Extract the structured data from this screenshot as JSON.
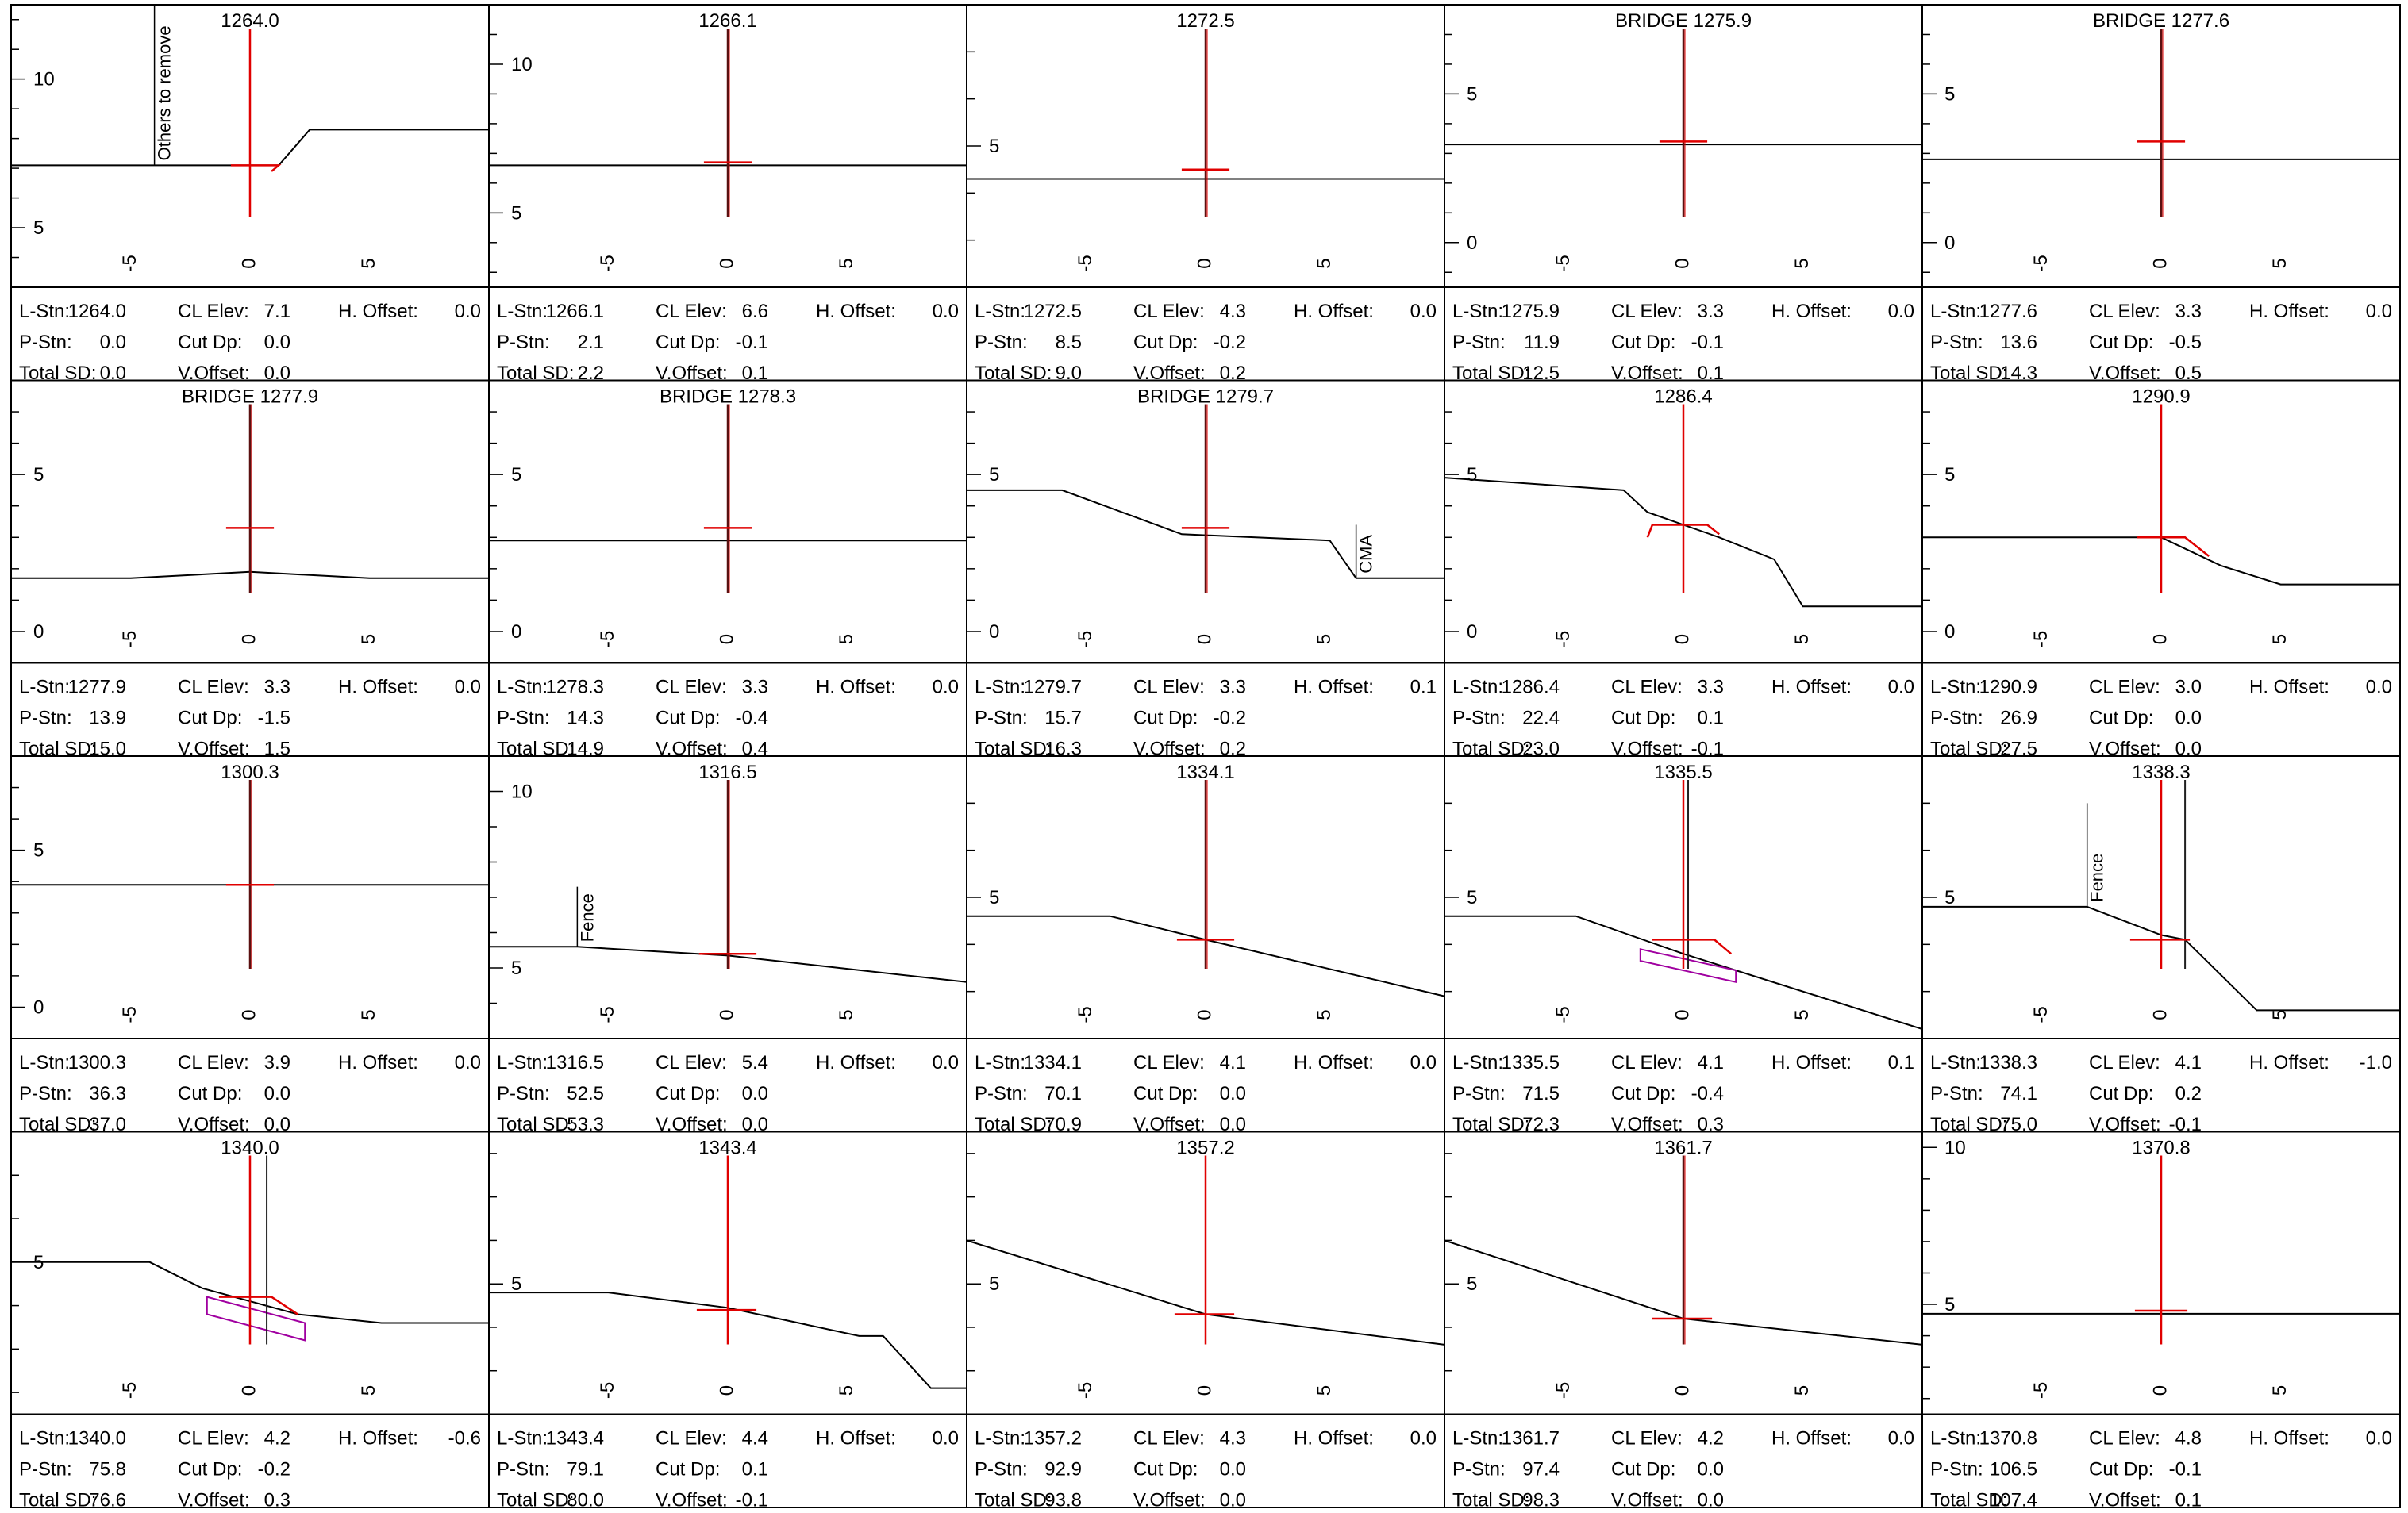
{
  "colors": {
    "grid": "#000000",
    "ground": "#000000",
    "design": "#e00000",
    "box": "#a000a0",
    "background": "#ffffff"
  },
  "labels": {
    "l_stn": "L-Stn:",
    "p_stn": "P-Stn:",
    "total_sd": "Total SD:",
    "cl_elev": "CL Elev:",
    "cut_dp": "Cut Dp:",
    "v_offset": "V.Offset:",
    "h_offset": "H. Offset:"
  },
  "sections": [
    {
      "title": "1264.0",
      "ytick_values": [
        5,
        10
      ],
      "ylim": [
        3,
        12.5
      ],
      "xticks": [
        -5,
        0,
        5
      ],
      "ground": [
        [
          -10,
          7.1
        ],
        [
          -8,
          7.1
        ],
        [
          -4,
          7.1
        ],
        [
          0,
          7.1
        ],
        [
          1.2,
          7.1
        ],
        [
          2.5,
          8.3
        ],
        [
          10,
          8.3
        ]
      ],
      "design": [
        [
          -0.8,
          7.1
        ],
        [
          1.2,
          7.1
        ],
        [
          0.9,
          6.9
        ]
      ],
      "center_color": "design",
      "extra_vline": null,
      "annotations": [
        {
          "text": "Others to remove",
          "x": -4,
          "y0": 7.1,
          "y1": 13
        }
      ],
      "l_stn": "1264.0",
      "p_stn": "0.0",
      "total_sd": "0.0",
      "cl_elev": "7.1",
      "cut_dp": "0.0",
      "v_offset": "0.0",
      "h_offset": "0.0"
    },
    {
      "title": "1266.1",
      "ytick_values": [
        5,
        10
      ],
      "ylim": [
        2.5,
        12
      ],
      "xticks": [
        -5,
        0,
        5
      ],
      "ground": [
        [
          -10,
          6.6
        ],
        [
          10,
          6.6
        ]
      ],
      "design": [
        [
          -1,
          6.7
        ],
        [
          1,
          6.7
        ]
      ],
      "center_color": "dark",
      "extra_vline": null,
      "annotations": [],
      "l_stn": "1266.1",
      "p_stn": "2.1",
      "total_sd": "2.2",
      "cl_elev": "6.6",
      "cut_dp": "-0.1",
      "v_offset": "0.1",
      "h_offset": "0.0"
    },
    {
      "title": "1272.5",
      "ytick_values": [
        5
      ],
      "ylim": [
        2,
        8
      ],
      "xticks": [
        -5,
        0,
        5
      ],
      "ground": [
        [
          -10,
          4.3
        ],
        [
          10,
          4.3
        ]
      ],
      "design": [
        [
          -1,
          4.5
        ],
        [
          1,
          4.5
        ]
      ],
      "center_color": "dark",
      "extra_vline": null,
      "annotations": [],
      "l_stn": "1272.5",
      "p_stn": "8.5",
      "total_sd": "9.0",
      "cl_elev": "4.3",
      "cut_dp": "-0.2",
      "v_offset": "0.2",
      "h_offset": "0.0"
    },
    {
      "title": "BRIDGE 1275.9",
      "ytick_values": [
        0,
        5
      ],
      "ylim": [
        -1.5,
        8
      ],
      "xticks": [
        -5,
        0,
        5
      ],
      "ground": [
        [
          -10,
          3.3
        ],
        [
          10,
          3.3
        ]
      ],
      "design": [
        [
          -1,
          3.4
        ],
        [
          1,
          3.4
        ]
      ],
      "center_color": "dark",
      "extra_vline": null,
      "annotations": [],
      "l_stn": "1275.9",
      "p_stn": "11.9",
      "total_sd": "12.5",
      "cl_elev": "3.3",
      "cut_dp": "-0.1",
      "v_offset": "0.1",
      "h_offset": "0.0"
    },
    {
      "title": "BRIDGE 1277.6",
      "ytick_values": [
        0,
        5
      ],
      "ylim": [
        -1.5,
        8
      ],
      "xticks": [
        -5,
        0,
        5
      ],
      "ground": [
        [
          -10,
          2.8
        ],
        [
          10,
          2.8
        ]
      ],
      "design": [
        [
          -1,
          3.4
        ],
        [
          1,
          3.4
        ]
      ],
      "center_color": "dark",
      "extra_vline": null,
      "annotations": [],
      "l_stn": "1277.6",
      "p_stn": "13.6",
      "total_sd": "14.3",
      "cl_elev": "3.3",
      "cut_dp": "-0.5",
      "v_offset": "0.5",
      "h_offset": "0.0"
    },
    {
      "title": "BRIDGE 1277.9",
      "ytick_values": [
        0,
        5
      ],
      "ylim": [
        -1,
        8
      ],
      "xticks": [
        -5,
        0,
        5
      ],
      "ground": [
        [
          -10,
          1.7
        ],
        [
          -5,
          1.7
        ],
        [
          0,
          1.9
        ],
        [
          5,
          1.7
        ],
        [
          10,
          1.7
        ]
      ],
      "design": [
        [
          -1,
          3.3
        ],
        [
          1,
          3.3
        ]
      ],
      "center_color": "dark",
      "extra_vline": null,
      "annotations": [],
      "l_stn": "1277.9",
      "p_stn": "13.9",
      "total_sd": "15.0",
      "cl_elev": "3.3",
      "cut_dp": "-1.5",
      "v_offset": "1.5",
      "h_offset": "0.0"
    },
    {
      "title": "BRIDGE 1278.3",
      "ytick_values": [
        0,
        5
      ],
      "ylim": [
        -1,
        8
      ],
      "xticks": [
        -5,
        0,
        5
      ],
      "ground": [
        [
          -10,
          2.9
        ],
        [
          10,
          2.9
        ]
      ],
      "design": [
        [
          -1,
          3.3
        ],
        [
          1,
          3.3
        ]
      ],
      "center_color": "dark",
      "extra_vline": null,
      "annotations": [],
      "l_stn": "1278.3",
      "p_stn": "14.3",
      "total_sd": "14.9",
      "cl_elev": "3.3",
      "cut_dp": "-0.4",
      "v_offset": "0.4",
      "h_offset": "0.0"
    },
    {
      "title": "BRIDGE 1279.7",
      "ytick_values": [
        0,
        5
      ],
      "ylim": [
        -1,
        8
      ],
      "xticks": [
        -5,
        0,
        5
      ],
      "ground": [
        [
          -10,
          4.5
        ],
        [
          -6,
          4.5
        ],
        [
          -1,
          3.1
        ],
        [
          5.2,
          2.9
        ],
        [
          6.3,
          1.7
        ],
        [
          10,
          1.7
        ]
      ],
      "design": [
        [
          -1,
          3.3
        ],
        [
          1,
          3.3
        ]
      ],
      "center_color": "dark",
      "extra_vline": null,
      "annotations": [
        {
          "text": "CMA",
          "x": 6.3,
          "y0": 1.7,
          "y1": 3.4
        }
      ],
      "l_stn": "1279.7",
      "p_stn": "15.7",
      "total_sd": "16.3",
      "cl_elev": "3.3",
      "cut_dp": "-0.2",
      "v_offset": "0.2",
      "h_offset": "0.1"
    },
    {
      "title": "1286.4",
      "ytick_values": [
        0,
        5
      ],
      "ylim": [
        -1,
        8
      ],
      "xticks": [
        -5,
        0,
        5
      ],
      "ground": [
        [
          -10,
          4.9
        ],
        [
          -2.5,
          4.5
        ],
        [
          -1.5,
          3.8
        ],
        [
          1.5,
          3.0
        ],
        [
          3.8,
          2.3
        ],
        [
          5,
          0.8
        ],
        [
          10,
          0.8
        ]
      ],
      "design": [
        [
          -1.5,
          3.0
        ],
        [
          -1.3,
          3.4
        ],
        [
          1.0,
          3.4
        ],
        [
          1.5,
          3.1
        ]
      ],
      "center_color": "design",
      "extra_vline": null,
      "annotations": [],
      "l_stn": "1286.4",
      "p_stn": "22.4",
      "total_sd": "23.0",
      "cl_elev": "3.3",
      "cut_dp": "0.1",
      "v_offset": "-0.1",
      "h_offset": "0.0"
    },
    {
      "title": "1290.9",
      "ytick_values": [
        0,
        5
      ],
      "ylim": [
        -1,
        8
      ],
      "xticks": [
        -5,
        0,
        5
      ],
      "ground": [
        [
          -10,
          3.0
        ],
        [
          0,
          3.0
        ],
        [
          2.5,
          2.1
        ],
        [
          5,
          1.5
        ],
        [
          10,
          1.5
        ]
      ],
      "design": [
        [
          -1,
          3.0
        ],
        [
          1,
          3.0
        ],
        [
          2.0,
          2.4
        ]
      ],
      "center_color": "design",
      "extra_vline": null,
      "annotations": [],
      "l_stn": "1290.9",
      "p_stn": "26.9",
      "total_sd": "27.5",
      "cl_elev": "3.0",
      "cut_dp": "0.0",
      "v_offset": "0.0",
      "h_offset": "0.0"
    },
    {
      "title": "1300.3",
      "ytick_values": [
        0,
        5
      ],
      "ylim": [
        -1,
        8
      ],
      "xticks": [
        -5,
        0,
        5
      ],
      "ground": [
        [
          -10,
          3.9
        ],
        [
          10,
          3.9
        ]
      ],
      "design": [
        [
          -1,
          3.9
        ],
        [
          1,
          3.9
        ]
      ],
      "center_color": "dark",
      "extra_vline": null,
      "annotations": [],
      "l_stn": "1300.3",
      "p_stn": "36.3",
      "total_sd": "37.0",
      "cl_elev": "3.9",
      "cut_dp": "0.0",
      "v_offset": "0.0",
      "h_offset": "0.0"
    },
    {
      "title": "1316.5",
      "ytick_values": [
        5,
        10
      ],
      "ylim": [
        3,
        11
      ],
      "xticks": [
        -5,
        0,
        5
      ],
      "ground": [
        [
          -10,
          5.6
        ],
        [
          -6.3,
          5.6
        ],
        [
          0,
          5.35
        ],
        [
          10,
          4.6
        ]
      ],
      "design": [
        [
          -1.2,
          5.4
        ],
        [
          1.2,
          5.4
        ]
      ],
      "center_color": "dark",
      "extra_vline": null,
      "annotations": [
        {
          "text": "Fence",
          "x": -6.3,
          "y0": 5.6,
          "y1": 7.3
        }
      ],
      "l_stn": "1316.5",
      "p_stn": "52.5",
      "total_sd": "53.3",
      "cl_elev": "5.4",
      "cut_dp": "0.0",
      "v_offset": "0.0",
      "h_offset": "0.0"
    },
    {
      "title": "1334.1",
      "ytick_values": [
        5
      ],
      "ylim": [
        2,
        8
      ],
      "xticks": [
        -5,
        0,
        5
      ],
      "ground": [
        [
          -10,
          4.6
        ],
        [
          -4,
          4.6
        ],
        [
          0,
          4.1
        ],
        [
          10,
          2.9
        ]
      ],
      "design": [
        [
          -1.2,
          4.1
        ],
        [
          1.2,
          4.1
        ]
      ],
      "center_color": "dark",
      "extra_vline": null,
      "annotations": [],
      "l_stn": "1334.1",
      "p_stn": "70.1",
      "total_sd": "70.9",
      "cl_elev": "4.1",
      "cut_dp": "0.0",
      "v_offset": "0.0",
      "h_offset": "0.0"
    },
    {
      "title": "1335.5",
      "ytick_values": [
        5
      ],
      "ylim": [
        2,
        8
      ],
      "xticks": [
        -5,
        0,
        5
      ],
      "ground": [
        [
          -10,
          4.6
        ],
        [
          -4.5,
          4.6
        ],
        [
          0,
          3.8
        ],
        [
          10,
          2.2
        ]
      ],
      "design": [
        [
          -1.3,
          4.1
        ],
        [
          1.3,
          4.1
        ],
        [
          2.0,
          3.8
        ]
      ],
      "center_color": "design",
      "extra_vline": 0.2,
      "box": [
        [
          -1.8,
          3.9
        ],
        [
          2.2,
          3.45
        ],
        [
          2.2,
          3.2
        ],
        [
          -1.8,
          3.65
        ]
      ],
      "annotations": [],
      "l_stn": "1335.5",
      "p_stn": "71.5",
      "total_sd": "72.3",
      "cl_elev": "4.1",
      "cut_dp": "-0.4",
      "v_offset": "0.3",
      "h_offset": "0.1"
    },
    {
      "title": "1338.3",
      "ytick_values": [
        5
      ],
      "ylim": [
        2,
        8
      ],
      "xticks": [
        -5,
        0,
        5
      ],
      "ground": [
        [
          -10,
          4.8
        ],
        [
          -3.1,
          4.8
        ],
        [
          0,
          4.2
        ],
        [
          1,
          4.1
        ],
        [
          4.0,
          2.6
        ],
        [
          10,
          2.6
        ]
      ],
      "design": [
        [
          -1.3,
          4.1
        ],
        [
          1.2,
          4.1
        ]
      ],
      "center_color": "design",
      "extra_vline": 1.0,
      "annotations": [
        {
          "text": "Fence",
          "x": -3.1,
          "y0": 4.8,
          "y1": 7.0
        }
      ],
      "l_stn": "1338.3",
      "p_stn": "74.1",
      "total_sd": "75.0",
      "cl_elev": "4.1",
      "cut_dp": "0.2",
      "v_offset": "-0.1",
      "h_offset": "-1.0"
    },
    {
      "title": "1340.0",
      "ytick_values": [
        5
      ],
      "ylim": [
        1.5,
        8
      ],
      "xticks": [
        -5,
        0,
        5
      ],
      "ground": [
        [
          -10,
          5.0
        ],
        [
          -4.2,
          5.0
        ],
        [
          -2,
          4.4
        ],
        [
          2,
          3.8
        ],
        [
          5.5,
          3.6
        ],
        [
          10,
          3.6
        ]
      ],
      "design": [
        [
          -1.3,
          4.2
        ],
        [
          0.9,
          4.2
        ],
        [
          2.0,
          3.8
        ]
      ],
      "center_color": "design",
      "extra_vline": 0.7,
      "box": [
        [
          -1.8,
          4.2
        ],
        [
          2.3,
          3.6
        ],
        [
          2.3,
          3.2
        ],
        [
          -1.8,
          3.8
        ]
      ],
      "annotations": [],
      "l_stn": "1340.0",
      "p_stn": "75.8",
      "total_sd": "76.6",
      "cl_elev": "4.2",
      "cut_dp": "-0.2",
      "v_offset": "0.3",
      "h_offset": "-0.6"
    },
    {
      "title": "1343.4",
      "ytick_values": [
        5
      ],
      "ylim": [
        2,
        8.5
      ],
      "xticks": [
        -5,
        0,
        5
      ],
      "ground": [
        [
          -10,
          4.8
        ],
        [
          -5,
          4.8
        ],
        [
          0,
          4.45
        ],
        [
          5.5,
          3.8
        ],
        [
          6.5,
          3.8
        ],
        [
          8.5,
          2.6
        ],
        [
          10,
          2.6
        ]
      ],
      "design": [
        [
          -1.3,
          4.4
        ],
        [
          1.2,
          4.4
        ]
      ],
      "center_color": "design",
      "extra_vline": null,
      "annotations": [],
      "l_stn": "1343.4",
      "p_stn": "79.1",
      "total_sd": "80.0",
      "cl_elev": "4.4",
      "cut_dp": "0.1",
      "v_offset": "-0.1",
      "h_offset": "0.0"
    },
    {
      "title": "1357.2",
      "ytick_values": [
        5
      ],
      "ylim": [
        2,
        8.5
      ],
      "xticks": [
        -5,
        0,
        5
      ],
      "ground": [
        [
          -10,
          6.0
        ],
        [
          0,
          4.3
        ],
        [
          10,
          3.6
        ]
      ],
      "design": [
        [
          -1.3,
          4.3
        ],
        [
          1.2,
          4.3
        ]
      ],
      "center_color": "design",
      "extra_vline": null,
      "annotations": [],
      "l_stn": "1357.2",
      "p_stn": "92.9",
      "total_sd": "93.8",
      "cl_elev": "4.3",
      "cut_dp": "0.0",
      "v_offset": "0.0",
      "h_offset": "0.0"
    },
    {
      "title": "1361.7",
      "ytick_values": [
        5
      ],
      "ylim": [
        2,
        8.5
      ],
      "xticks": [
        -5,
        0,
        5
      ],
      "ground": [
        [
          -10,
          6.0
        ],
        [
          0,
          4.2
        ],
        [
          10,
          3.6
        ]
      ],
      "design": [
        [
          -1.3,
          4.2
        ],
        [
          1.2,
          4.2
        ]
      ],
      "center_color": "dark",
      "extra_vline": null,
      "annotations": [],
      "l_stn": "1361.7",
      "p_stn": "97.4",
      "total_sd": "98.3",
      "cl_elev": "4.2",
      "cut_dp": "0.0",
      "v_offset": "0.0",
      "h_offset": "0.0"
    },
    {
      "title": "1370.8",
      "ytick_values": [
        5,
        10
      ],
      "ylim": [
        1.5,
        10.5
      ],
      "xticks": [
        -5,
        0,
        5
      ],
      "ground": [
        [
          -10,
          4.7
        ],
        [
          10,
          4.7
        ]
      ],
      "design": [
        [
          -1.1,
          4.8
        ],
        [
          1.1,
          4.8
        ]
      ],
      "center_color": "design",
      "extra_vline": null,
      "annotations": [],
      "l_stn": "1370.8",
      "p_stn": "106.5",
      "total_sd": "107.4",
      "cl_elev": "4.8",
      "cut_dp": "-0.1",
      "v_offset": "0.1",
      "h_offset": "0.0"
    }
  ]
}
